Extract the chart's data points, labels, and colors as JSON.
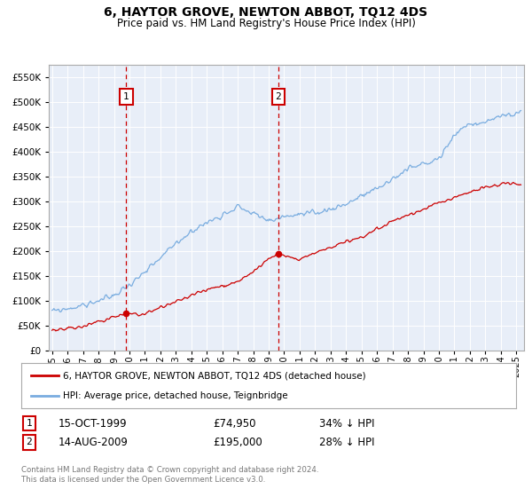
{
  "title": "6, HAYTOR GROVE, NEWTON ABBOT, TQ12 4DS",
  "subtitle": "Price paid vs. HM Land Registry's House Price Index (HPI)",
  "legend_line1": "6, HAYTOR GROVE, NEWTON ABBOT, TQ12 4DS (detached house)",
  "legend_line2": "HPI: Average price, detached house, Teignbridge",
  "transaction1_date": "15-OCT-1999",
  "transaction1_price": "£74,950",
  "transaction1_hpi": "34% ↓ HPI",
  "transaction1_year": 1999.79,
  "transaction1_value": 74950,
  "transaction2_date": "14-AUG-2009",
  "transaction2_price": "£195,000",
  "transaction2_hpi": "28% ↓ HPI",
  "transaction2_year": 2009.62,
  "transaction2_value": 195000,
  "footer": "Contains HM Land Registry data © Crown copyright and database right 2024.\nThis data is licensed under the Open Government Licence v3.0.",
  "red_color": "#cc0000",
  "blue_color": "#7aade0",
  "background_color": "#e8eef8",
  "ylim": [
    0,
    575000
  ],
  "xlim_start": 1994.8,
  "xlim_end": 2025.5,
  "yticks": [
    0,
    50000,
    100000,
    150000,
    200000,
    250000,
    300000,
    350000,
    400000,
    450000,
    500000,
    550000
  ]
}
